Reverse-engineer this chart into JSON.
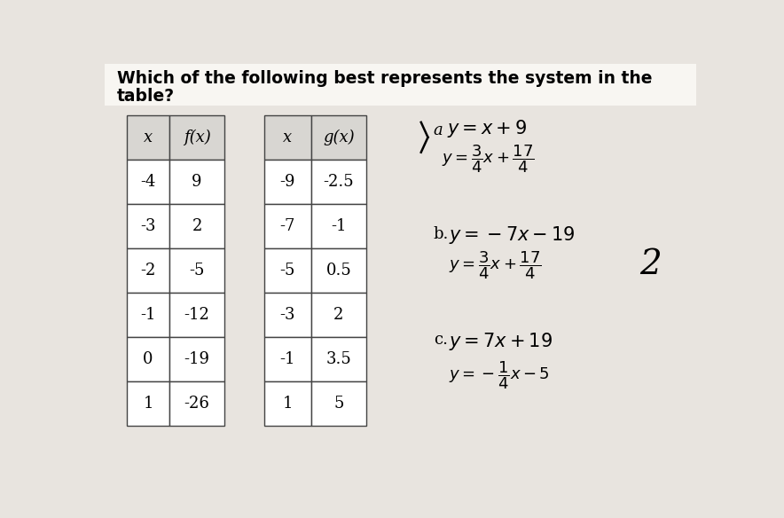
{
  "title_line1": "Which of the following best represents the system in the",
  "title_line2": "table?",
  "bg_color": "#e8e4df",
  "paper_color": "#f5f3f0",
  "table1": {
    "headers": [
      "x",
      "f(x)"
    ],
    "rows": [
      [
        "-4",
        "9"
      ],
      [
        "-3",
        "2"
      ],
      [
        "-2",
        "-5"
      ],
      [
        "-1",
        "-12"
      ],
      [
        "0",
        "-19"
      ],
      [
        "1",
        "-26"
      ]
    ]
  },
  "table2": {
    "headers": [
      "x",
      "g(x)"
    ],
    "rows": [
      [
        "-9",
        "-2.5"
      ],
      [
        "-7",
        "-1"
      ],
      [
        "-5",
        "0.5"
      ],
      [
        "-3",
        "2"
      ],
      [
        "-1",
        "3.5"
      ],
      [
        "1",
        "5"
      ]
    ]
  }
}
